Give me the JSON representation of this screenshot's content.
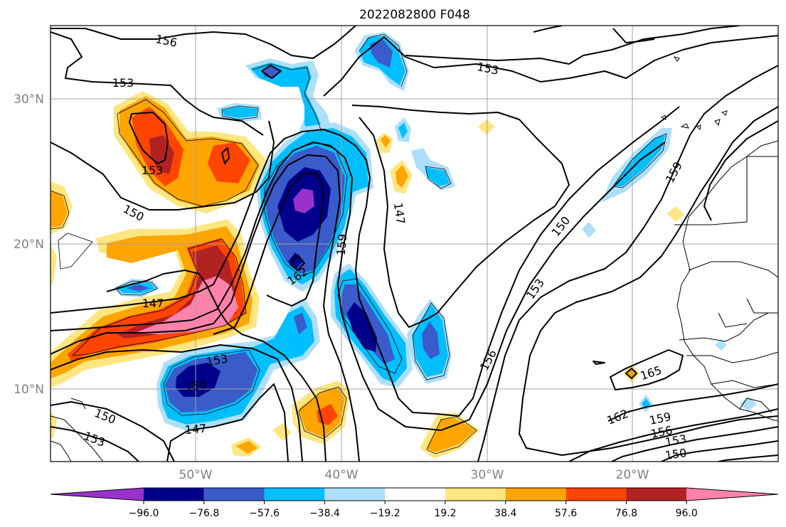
{
  "title": "2022082800 F048",
  "lat_labels": [
    "30°N",
    "20°N",
    "10°N"
  ],
  "lon_labels": [
    "50°W",
    "40°W",
    "30°W",
    "20°W"
  ],
  "contour_labels": [
    "156",
    "153",
    "153",
    "150",
    "147",
    "153",
    "150",
    "150",
    "153",
    "147",
    "159",
    "162",
    "147",
    "153",
    "150",
    "153",
    "156",
    "159",
    "165",
    "162",
    "159",
    "156",
    "153",
    "150"
  ],
  "colorbar": {
    "tick_labels": [
      "−96.0",
      "−76.8",
      "−57.6",
      "−38.4",
      "−19.2",
      "19.2",
      "38.4",
      "57.6",
      "76.8",
      "96.0"
    ],
    "colors": [
      "#9932CC",
      "#00008B",
      "#3A5BC9",
      "#00BFFF",
      "#ADDFFA",
      "#FFFFFF",
      "#FFE680",
      "#FFA500",
      "#FF4500",
      "#B22222",
      "#FF82AB"
    ]
  },
  "colors": {
    "frame": "#000000",
    "gridlines": "#a0a0a0",
    "axis_labels": "#808080"
  }
}
